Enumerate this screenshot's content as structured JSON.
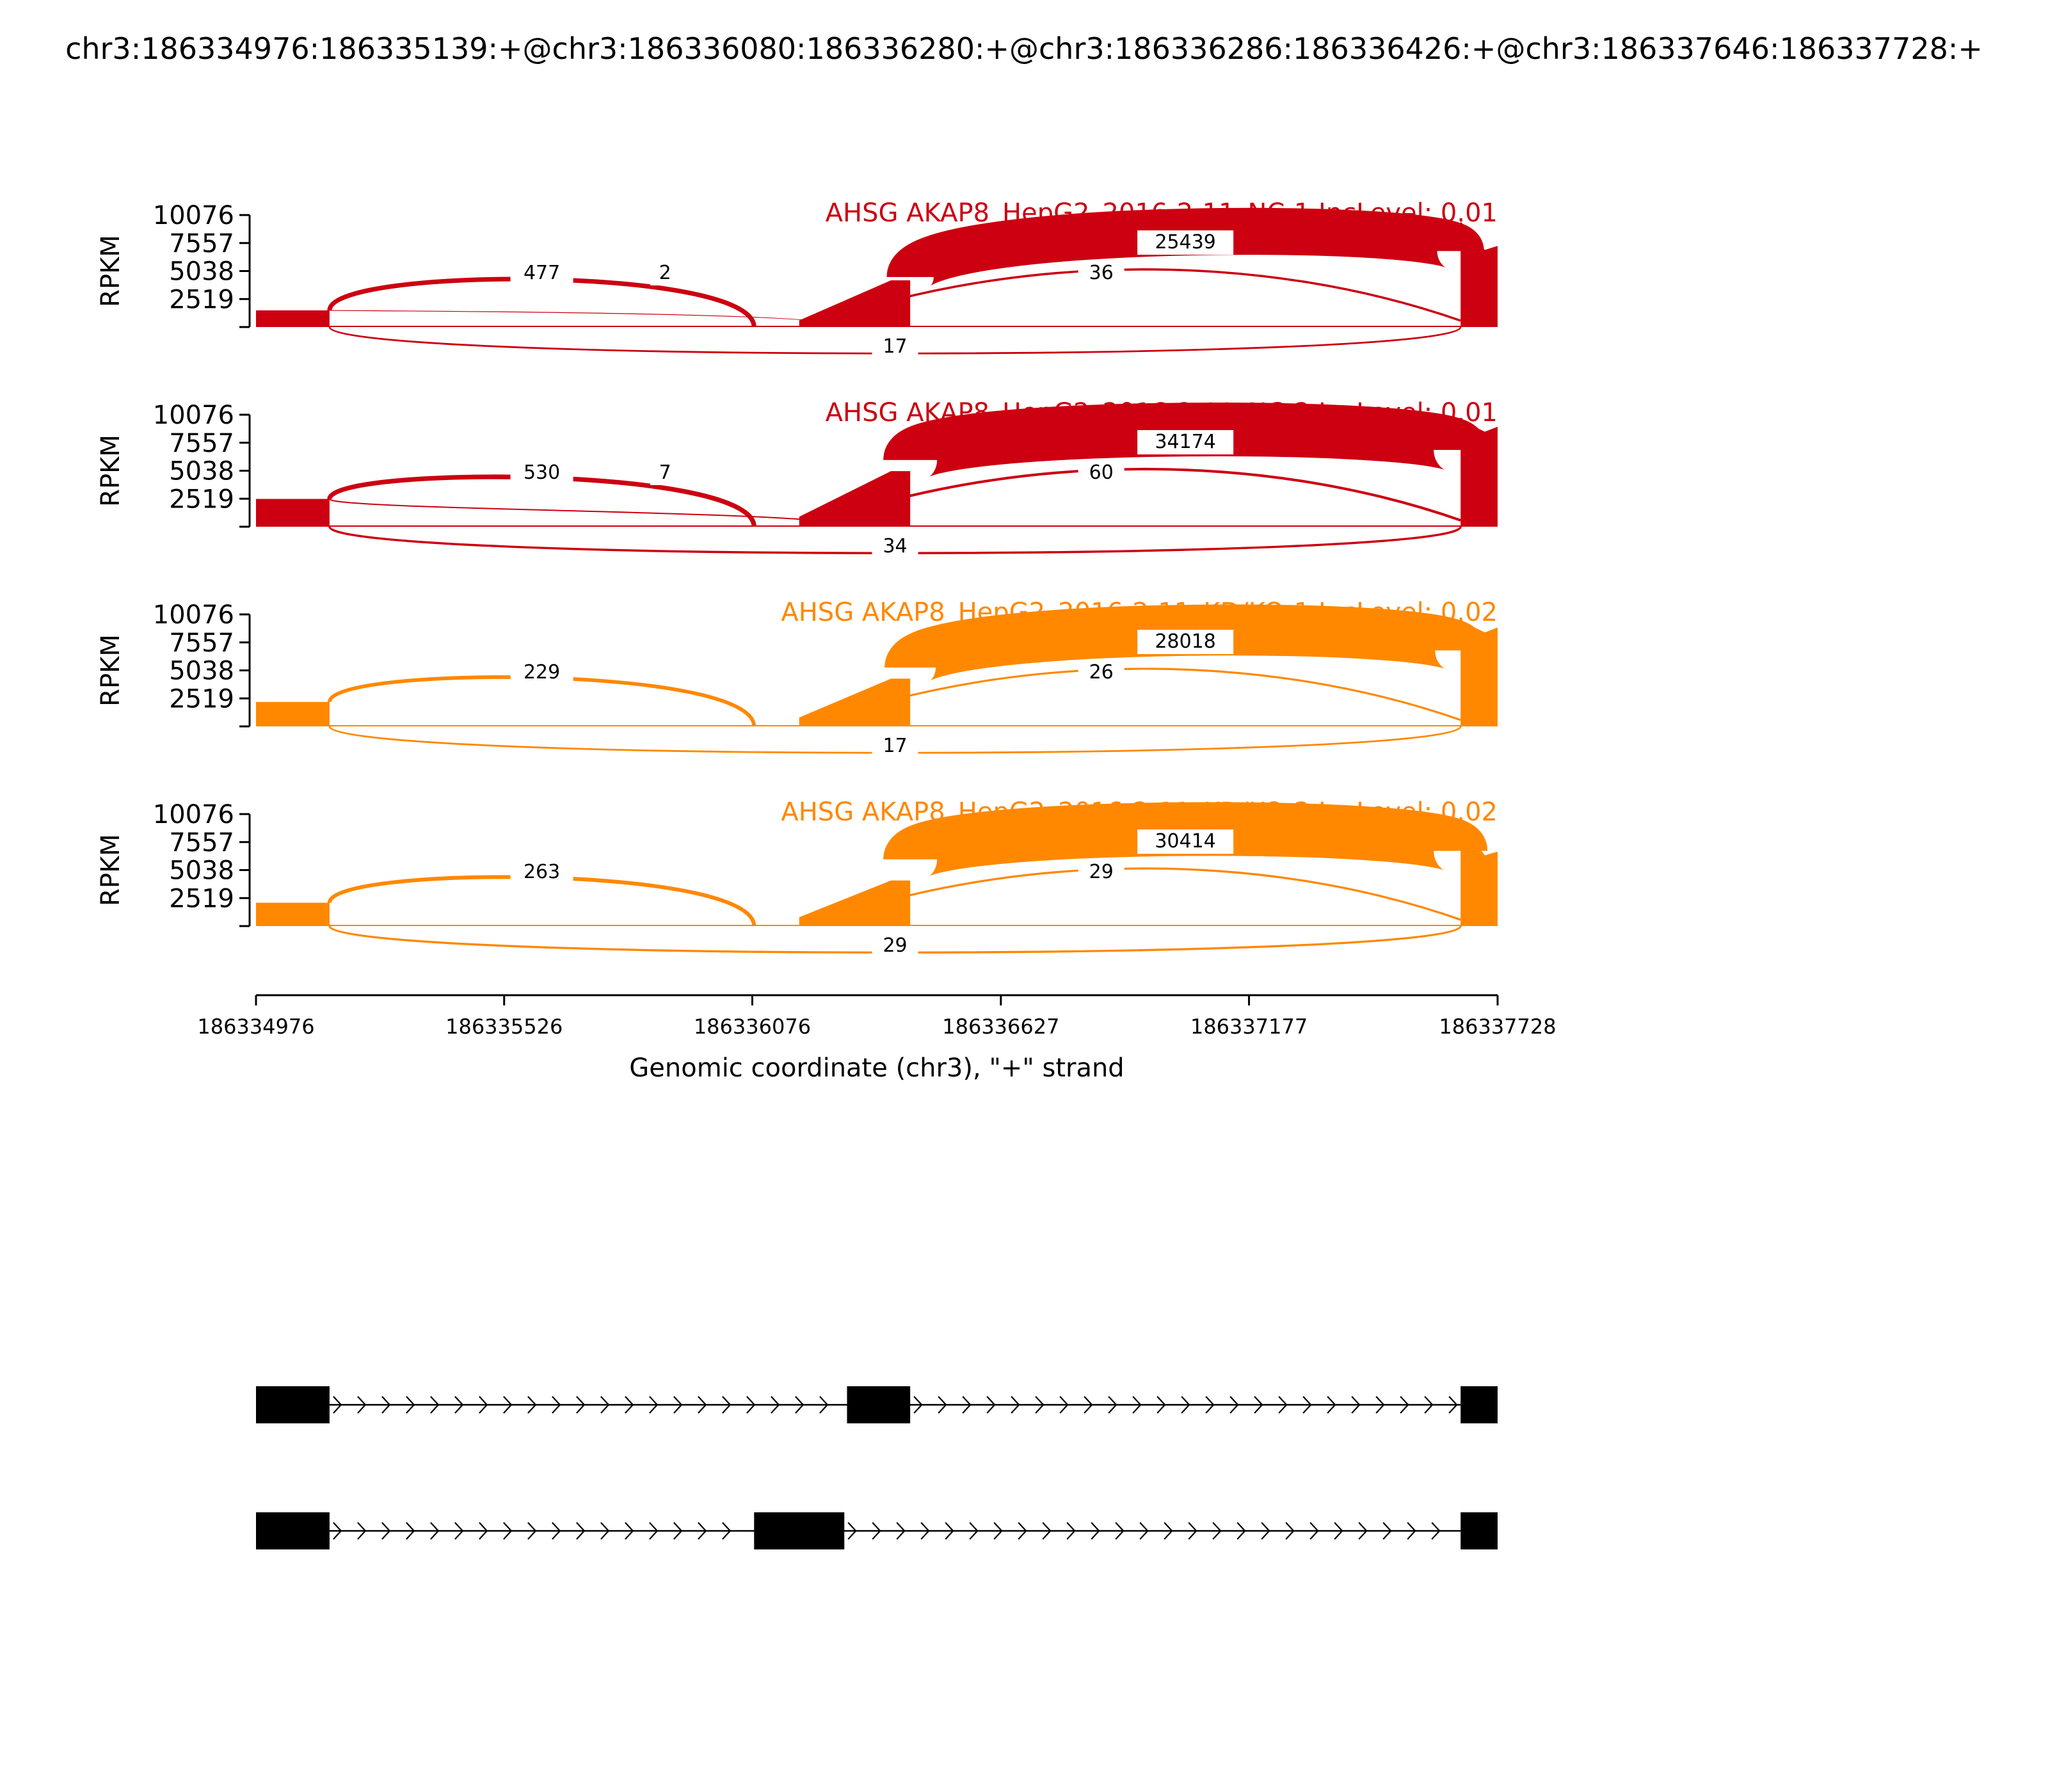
{
  "title": "chr3:186334976:186335139:+@chr3:186336080:186336280:+@chr3:186336286:186336426:+@chr3:186337646:186337728:+",
  "chart_data": {
    "type": "sashimi",
    "xlabel": "Genomic coordinate (chr3), \"+\" strand",
    "x_ticks": [
      186334976,
      186335526,
      186336076,
      186336627,
      186337177,
      186337728
    ],
    "xlim": [
      186334976,
      186337728
    ],
    "ylabel": "RPKM",
    "y_ticks": [
      2519,
      5038,
      7557,
      10076
    ],
    "ylim": [
      0,
      10076
    ],
    "exons": [
      {
        "start": 186334976,
        "end": 186335139
      },
      {
        "start": 186336080,
        "end": 186336280
      },
      {
        "start": 186336286,
        "end": 186336426
      },
      {
        "start": 186337646,
        "end": 186337728
      }
    ],
    "samples": [
      {
        "label": "AHSG AKAP8_HepG2_2016-2-11_NC-1 IncLevel: 0.01",
        "color": "#cc0011",
        "coverage": {
          "exon1": 1500,
          "exon2_start": 600,
          "exon2_end": 4200,
          "exon3": 4500,
          "exon4_start": 9500,
          "exon4_end": 7300
        },
        "junctions": [
          {
            "start": 186335139,
            "end": 186336080,
            "count": "477",
            "side": "above"
          },
          {
            "start": 186335139,
            "end": 186336286,
            "count": "2",
            "side": "above"
          },
          {
            "start": 186336426,
            "end": 186337646,
            "count": "25439",
            "side": "above"
          },
          {
            "start": 186336280,
            "end": 186337646,
            "count": "36",
            "side": "above"
          },
          {
            "start": 186335139,
            "end": 186337646,
            "count": "17",
            "side": "below"
          }
        ]
      },
      {
        "label": "AHSG AKAP8_HepG2_2016-2-11_NC-2 IncLevel: 0.01",
        "color": "#cc0011",
        "coverage": {
          "exon1": 2500,
          "exon2_start": 900,
          "exon2_end": 5000,
          "exon3": 6000,
          "exon4_start": 9600,
          "exon4_end": 9000
        },
        "junctions": [
          {
            "start": 186335139,
            "end": 186336080,
            "count": "530",
            "side": "above"
          },
          {
            "start": 186335139,
            "end": 186336286,
            "count": "7",
            "side": "above"
          },
          {
            "start": 186336426,
            "end": 186337646,
            "count": "34174",
            "side": "above"
          },
          {
            "start": 186336280,
            "end": 186337646,
            "count": "60",
            "side": "above"
          },
          {
            "start": 186335139,
            "end": 186337646,
            "count": "34",
            "side": "below"
          }
        ]
      },
      {
        "label": "AHSG AKAP8_HepG2_2016-2-11_KD/KO-1 IncLevel: 0.02",
        "color": "#ff8800",
        "coverage": {
          "exon1": 2200,
          "exon2_start": 800,
          "exon2_end": 4300,
          "exon3": 5300,
          "exon4_start": 9500,
          "exon4_end": 8900
        },
        "junctions": [
          {
            "start": 186335139,
            "end": 186336080,
            "count": "229",
            "side": "above"
          },
          {
            "start": 186336426,
            "end": 186337646,
            "count": "28018",
            "side": "above"
          },
          {
            "start": 186336280,
            "end": 186337646,
            "count": "26",
            "side": "above"
          },
          {
            "start": 186335139,
            "end": 186337646,
            "count": "17",
            "side": "below"
          }
        ]
      },
      {
        "label": "AHSG AKAP8_HepG2_2016-2-11_KD/KO-2 IncLevel: 0.02",
        "color": "#ff8800",
        "coverage": {
          "exon1": 2100,
          "exon2_start": 800,
          "exon2_end": 4100,
          "exon3": 6000,
          "exon4_start": 9400,
          "exon4_end": 6700
        },
        "junctions": [
          {
            "start": 186335139,
            "end": 186336080,
            "count": "263",
            "side": "above"
          },
          {
            "start": 186336426,
            "end": 186337646,
            "count": "30414",
            "side": "above"
          },
          {
            "start": 186336280,
            "end": 186337646,
            "count": "29",
            "side": "above"
          },
          {
            "start": 186335139,
            "end": 186337646,
            "count": "29",
            "side": "below"
          }
        ]
      }
    ],
    "isoforms": [
      {
        "exons": [
          [
            186334976,
            186335139
          ],
          [
            186336286,
            186336426
          ],
          [
            186337646,
            186337728
          ]
        ]
      },
      {
        "exons": [
          [
            186334976,
            186335139
          ],
          [
            186336080,
            186336280
          ],
          [
            186337646,
            186337728
          ]
        ]
      }
    ]
  }
}
